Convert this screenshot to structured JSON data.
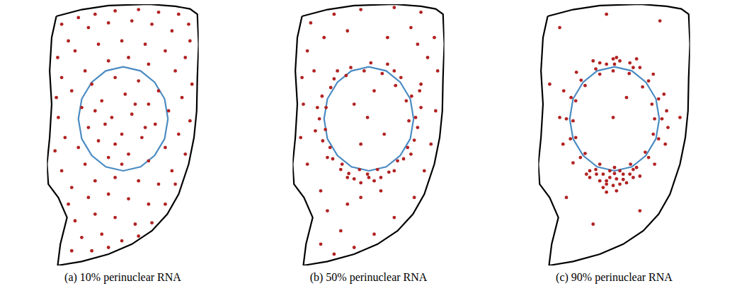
{
  "chart_data": [
    {
      "type": "scatter",
      "title": "(a) 10% perinuclear RNA",
      "tick_labels": false,
      "series": [
        {
          "type": "line",
          "color": "#000000",
          "line_style": "solid",
          "x": [
            62,
            100,
            140,
            200,
            240,
            262,
            273,
            275,
            273,
            272,
            268,
            260,
            245,
            228,
            205,
            175,
            140,
            100,
            64,
            68,
            78,
            65,
            50,
            48,
            52,
            55,
            52,
            55,
            62
          ],
          "values": [
            382,
            392,
            398,
            400,
            397,
            393,
            385,
            340,
            290,
            240,
            200,
            160,
            115,
            85,
            60,
            40,
            25,
            14,
            8,
            40,
            80,
            110,
            130,
            160,
            200,
            250,
            300,
            350,
            382
          ]
        },
        {
          "type": "line",
          "color": "#4a8bc2",
          "line_style": "solid",
          "x": [
            229,
            224,
            209,
            188,
            162,
            136,
            115,
            100,
            95,
            100,
            115,
            136,
            162,
            188,
            209,
            224,
            229
          ],
          "values": [
            228,
            258,
            283,
            300,
            306,
            300,
            283,
            258,
            228,
            198,
            173,
            156,
            150,
            156,
            173,
            198,
            228
          ]
        },
        {
          "type": "scatter",
          "color": "#b22222",
          "marker": "circle",
          "x": [
            70,
            95,
            120,
            150,
            185,
            215,
            245,
            260,
            110,
            140,
            175,
            205,
            235,
            262,
            80,
            64,
            90,
            125,
            160,
            195,
            225,
            255,
            70,
            105,
            140,
            170,
            200,
            240,
            265,
            62,
            85,
            115,
            150,
            185,
            215,
            250,
            65,
            100,
            130,
            165,
            200,
            230,
            262,
            75,
            110,
            145,
            175,
            210,
            245,
            60,
            95,
            125,
            160,
            190,
            225,
            255,
            70,
            105,
            140,
            170,
            200,
            235,
            85,
            120,
            150,
            185,
            215,
            240,
            80,
            110,
            140,
            170,
            200,
            225,
            90,
            120,
            150,
            180,
            205,
            100,
            130,
            160,
            185,
            85,
            115,
            140,
            150,
            135,
            180,
            120,
            195,
            160
          ],
          "values": [
            370,
            380,
            385,
            390,
            392,
            388,
            385,
            370,
            365,
            372,
            375,
            370,
            360,
            345,
            345,
            320,
            330,
            340,
            345,
            340,
            330,
            320,
            290,
            300,
            315,
            320,
            310,
            300,
            280,
            260,
            270,
            280,
            290,
            285,
            270,
            260,
            230,
            245,
            255,
            265,
            250,
            240,
            225,
            200,
            215,
            230,
            235,
            220,
            205,
            180,
            185,
            195,
            205,
            200,
            185,
            175,
            150,
            160,
            170,
            175,
            165,
            150,
            125,
            135,
            140,
            135,
            130,
            130,
            100,
            110,
            115,
            108,
            100,
            100,
            75,
            85,
            80,
            70,
            72,
            50,
            55,
            45,
            52,
            30,
            30,
            35,
            190,
            220,
            250,
            240,
            215,
            160
          ]
        }
      ]
    },
    {
      "type": "scatter",
      "title": "(b) 50% perinuclear RNA",
      "tick_labels": false,
      "series": [
        {
          "type": "line",
          "color": "#000000",
          "line_style": "solid",
          "x": [
            62,
            100,
            140,
            200,
            240,
            262,
            273,
            275,
            273,
            272,
            268,
            260,
            245,
            228,
            205,
            175,
            140,
            100,
            64,
            68,
            78,
            65,
            50,
            48,
            52,
            55,
            52,
            55,
            62
          ],
          "values": [
            382,
            392,
            398,
            400,
            397,
            393,
            385,
            340,
            290,
            240,
            200,
            160,
            115,
            85,
            60,
            40,
            25,
            14,
            8,
            40,
            80,
            110,
            130,
            160,
            200,
            250,
            300,
            350,
            382
          ]
        },
        {
          "type": "line",
          "color": "#4a8bc2",
          "line_style": "solid",
          "x": [
            229,
            224,
            209,
            188,
            162,
            136,
            115,
            100,
            95,
            100,
            115,
            136,
            162,
            188,
            209,
            224,
            229
          ],
          "values": [
            228,
            258,
            283,
            300,
            306,
            300,
            283,
            258,
            228,
            198,
            173,
            156,
            150,
            156,
            173,
            198,
            228
          ]
        },
        {
          "type": "scatter",
          "color": "#b22222",
          "marker": "circle",
          "x": [
            75,
            110,
            150,
            200,
            240,
            130,
            225,
            260,
            70,
            265,
            62,
            250,
            64,
            262,
            60,
            255,
            70,
            245,
            90,
            230,
            100,
            200,
            120,
            170,
            90,
            140,
            110,
            150,
            180,
            130,
            160,
            140,
            185,
            150,
            170,
            80,
            240,
            235,
            95,
            190,
            232,
            226,
            210,
            190,
            165,
            135,
            110,
            92,
            88,
            93,
            108,
            132,
            162,
            192,
            214,
            230,
            222,
            218,
            202,
            182,
            155,
            128,
            105,
            98,
            97,
            104,
            122,
            148,
            175,
            205,
            220,
            235,
            170,
            150,
            140,
            180,
            120,
            200,
            160,
            130,
            240,
            85,
            238,
            82,
            115,
            200,
            100,
            225
          ],
          "values": [
            372,
            385,
            392,
            395,
            388,
            360,
            365,
            350,
            330,
            300,
            290,
            320,
            250,
            240,
            200,
            190,
            160,
            150,
            120,
            110,
            90,
            80,
            60,
            55,
            40,
            35,
            25,
            110,
            120,
            100,
            230,
            250,
            205,
            190,
            270,
            300,
            280,
            340,
            350,
            350,
            230,
            262,
            290,
            310,
            312,
            305,
            288,
            262,
            228,
            195,
            168,
            146,
            140,
            148,
            168,
            196,
            225,
            255,
            278,
            296,
            300,
            293,
            275,
            245,
            212,
            185,
            160,
            152,
            152,
            165,
            185,
            215,
            135,
            132,
            138,
            140,
            152,
            150,
            145,
            140,
            245,
            245,
            270,
            210,
            300,
            300,
            170,
            175
          ]
        }
      ]
    },
    {
      "type": "scatter",
      "title": "(c) 90% perinuclear RNA",
      "tick_labels": false,
      "series": [
        {
          "type": "line",
          "color": "#000000",
          "line_style": "solid",
          "x": [
            62,
            100,
            140,
            200,
            240,
            262,
            273,
            275,
            273,
            272,
            268,
            260,
            245,
            228,
            205,
            175,
            140,
            100,
            64,
            68,
            78,
            65,
            50,
            48,
            52,
            55,
            52,
            55,
            62
          ],
          "values": [
            382,
            392,
            398,
            400,
            397,
            393,
            385,
            340,
            290,
            240,
            200,
            160,
            115,
            85,
            60,
            40,
            25,
            14,
            8,
            40,
            80,
            110,
            130,
            160,
            200,
            250,
            300,
            350,
            382
          ]
        },
        {
          "type": "line",
          "color": "#4a8bc2",
          "line_style": "solid",
          "x": [
            229,
            224,
            209,
            188,
            162,
            136,
            115,
            100,
            95,
            100,
            115,
            136,
            162,
            188,
            209,
            224,
            229
          ],
          "values": [
            228,
            258,
            283,
            300,
            306,
            300,
            283,
            258,
            228,
            198,
            173,
            156,
            150,
            156,
            173,
            198,
            228
          ]
        },
        {
          "type": "scatter",
          "color": "#b22222",
          "marker": "circle",
          "x": [
            80,
            150,
            230,
            65,
            260,
            90,
            200,
            130,
            160,
            180,
            233,
            228,
            213,
            190,
            162,
            134,
            112,
            97,
            90,
            96,
            111,
            134,
            162,
            190,
            213,
            228,
            222,
            218,
            204,
            184,
            160,
            140,
            118,
            104,
            100,
            104,
            118,
            140,
            162,
            186,
            208,
            220,
            240,
            236,
            220,
            195,
            165,
            130,
            105,
            86,
            80,
            85,
            100,
            125,
            150,
            175,
            200,
            222,
            238,
            242,
            145,
            155,
            165,
            175,
            150,
            160,
            170,
            140,
            185,
            135,
            155,
            170,
            145,
            180,
            190,
            125,
            165,
            150,
            120,
            195,
            150,
            170,
            185,
            140,
            160,
            200
          ],
          "values": [
            365,
            385,
            375,
            280,
            230,
            110,
            90,
            70,
            230,
            260,
            228,
            258,
            285,
            305,
            310,
            303,
            286,
            260,
            228,
            198,
            170,
            152,
            146,
            152,
            170,
            198,
            228,
            250,
            276,
            296,
            300,
            295,
            278,
            255,
            225,
            200,
            176,
            160,
            155,
            160,
            178,
            205,
            240,
            265,
            295,
            318,
            320,
            315,
            298,
            270,
            230,
            190,
            162,
            140,
            135,
            137,
            142,
            160,
            190,
            215,
            145,
            140,
            138,
            145,
            130,
            128,
            130,
            135,
            145,
            145,
            150,
            150,
            125,
            132,
            140,
            150,
            120,
            118,
            145,
            155,
            310,
            315,
            312,
            312,
            318,
            305
          ]
        }
      ]
    }
  ]
}
